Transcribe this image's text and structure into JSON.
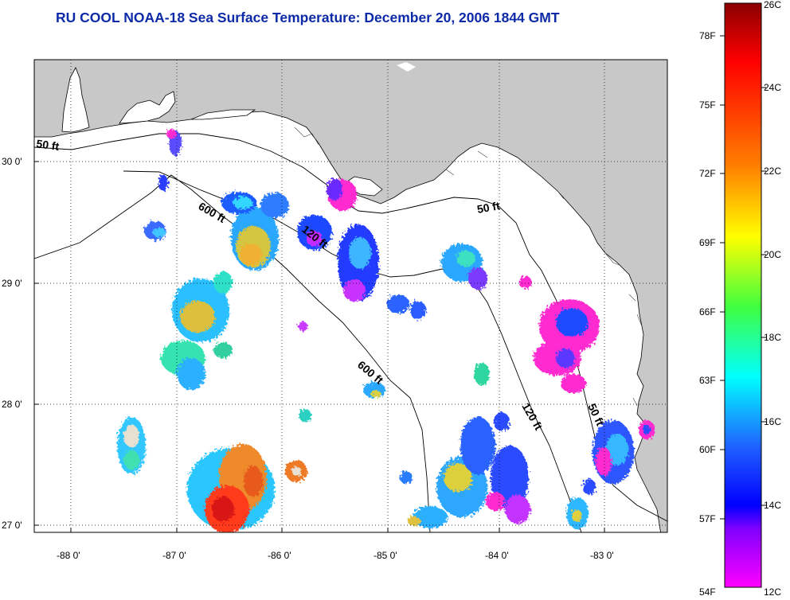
{
  "title": {
    "text": "RU COOL  NOAA-18  Sea Surface Temperature:  December 20, 2006 1844 GMT",
    "color": "#0d2aa8"
  },
  "map": {
    "land_color": "#c8c8c8",
    "water_color": "#ffffff",
    "lat_labels": [
      "30 0'",
      "29 0'",
      "28 0'",
      "27 0'"
    ],
    "lon_labels": [
      "-88 0'",
      "-87 0'",
      "-86 0'",
      "-85 0'",
      "-84 0'",
      "-83 0'"
    ],
    "isobath_labels": [
      {
        "id": "50ft-west",
        "text": "50 ft"
      },
      {
        "id": "600ft-north",
        "text": "600 ft"
      },
      {
        "id": "120ft-north",
        "text": "120 ft"
      },
      {
        "id": "50ft-bigbend",
        "text": "50 ft"
      },
      {
        "id": "600ft-central",
        "text": "600 ft"
      },
      {
        "id": "120ft-south",
        "text": "120 ft"
      },
      {
        "id": "50ft-south",
        "text": "50 ft"
      }
    ]
  },
  "colorbar": {
    "fahrenheit_labels": [
      "78F",
      "75F",
      "72F",
      "69F",
      "66F",
      "63F",
      "60F",
      "57F",
      "54F"
    ],
    "celsius_labels": [
      "26C",
      "24C",
      "22C",
      "20C",
      "18C",
      "16C",
      "14C",
      "12C"
    ],
    "range_c": [
      12,
      26
    ],
    "gradient_colors": [
      "#8b0000",
      "#ff0000",
      "#ff8000",
      "#ffff00",
      "#00ff00",
      "#00ffff",
      "#0000ff",
      "#8000ff",
      "#ff00ff"
    ]
  }
}
